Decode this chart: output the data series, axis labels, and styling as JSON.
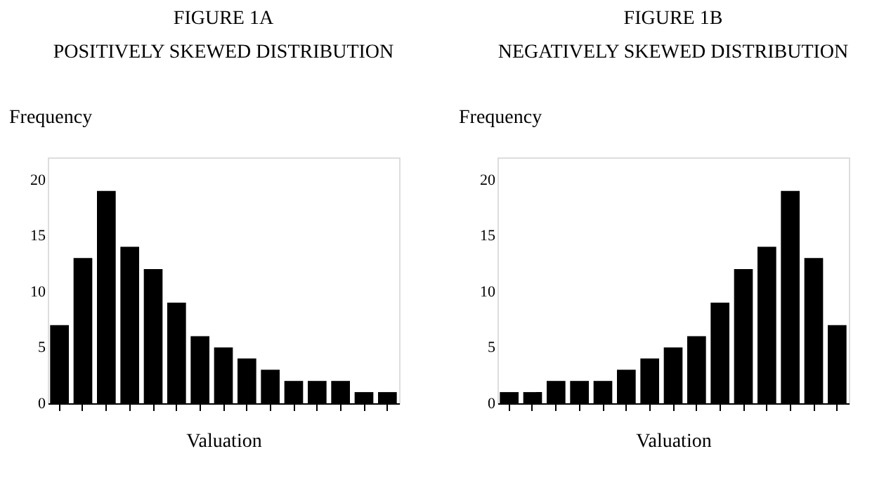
{
  "chart_data": [
    {
      "type": "bar",
      "title": "FIGURE 1A",
      "subtitle": "POSITIVELY SKEWED DISTRIBUTION",
      "xlabel": "Valuation",
      "ylabel": "Frequency",
      "categories": [
        null,
        null,
        null,
        null,
        null,
        null,
        null,
        null,
        null,
        null,
        null,
        null,
        null,
        null,
        null
      ],
      "values": [
        7,
        13,
        19,
        14,
        12,
        9,
        6,
        5,
        4,
        3,
        2,
        2,
        2,
        1,
        1
      ],
      "color": "#000000",
      "ylim": [
        0,
        22
      ],
      "yticks": [
        0,
        5,
        10,
        15,
        20
      ],
      "grid": false,
      "tick_labels": "y"
    },
    {
      "type": "bar",
      "title": "FIGURE 1B",
      "subtitle": "NEGATIVELY SKEWED DISTRIBUTION",
      "xlabel": "Valuation",
      "ylabel": "Frequency",
      "categories": [
        null,
        null,
        null,
        null,
        null,
        null,
        null,
        null,
        null,
        null,
        null,
        null,
        null,
        null,
        null
      ],
      "values": [
        1,
        1,
        2,
        2,
        2,
        3,
        4,
        5,
        6,
        9,
        12,
        14,
        19,
        13,
        7
      ],
      "color": "#000000",
      "ylim": [
        0,
        22
      ],
      "yticks": [
        0,
        5,
        10,
        15,
        20
      ],
      "grid": false,
      "tick_labels": "y"
    }
  ]
}
